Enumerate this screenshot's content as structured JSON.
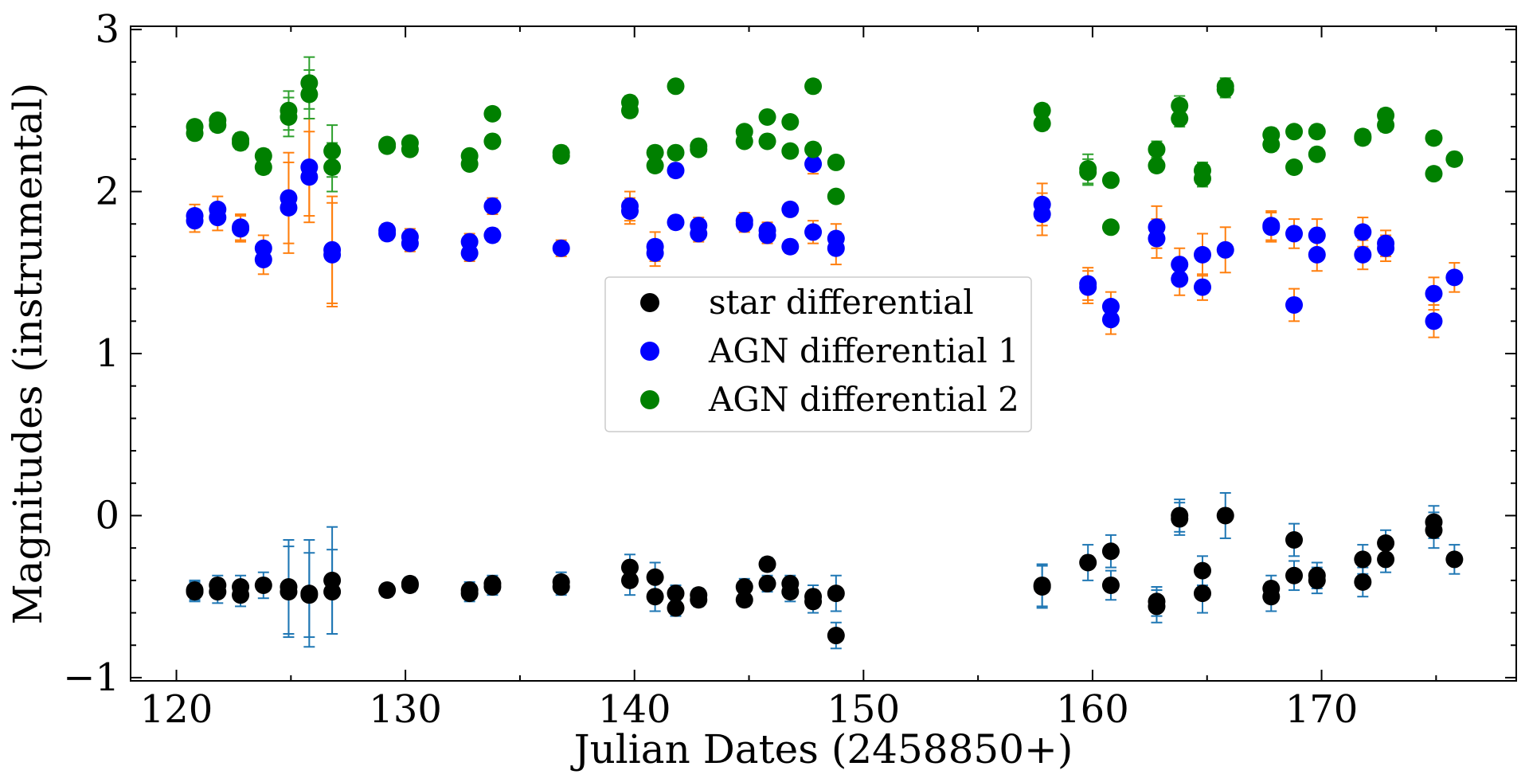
{
  "chart_data": {
    "type": "scatter",
    "title": "",
    "xlabel": "Julian Dates (2458850+)",
    "ylabel": "Magnitudes (instrumental)",
    "xlim": [
      118,
      178.5
    ],
    "ylim": [
      -1.02,
      3.02
    ],
    "xticks": [
      120,
      130,
      140,
      150,
      160,
      170
    ],
    "yticks": [
      -1,
      0,
      1,
      2,
      3
    ],
    "ytick_labels": [
      "−1",
      "0",
      "1",
      "2",
      "3"
    ],
    "grid": false,
    "legend_position": "center",
    "series": [
      {
        "name": "star differential",
        "color": "#000000",
        "errcolor": "#1f77b4",
        "points": [
          [
            120.8,
            -0.46,
            0.06
          ],
          [
            120.8,
            -0.47,
            0.06
          ],
          [
            121.8,
            -0.43,
            0.06
          ],
          [
            121.8,
            -0.47,
            0.07
          ],
          [
            122.8,
            -0.44,
            0.07
          ],
          [
            122.8,
            -0.49,
            0.07
          ],
          [
            123.8,
            -0.43,
            0.08
          ],
          [
            124.9,
            -0.44,
            0.29
          ],
          [
            124.9,
            -0.47,
            0.28
          ],
          [
            125.8,
            -0.48,
            0.33
          ],
          [
            125.8,
            -0.49,
            0.26
          ],
          [
            126.8,
            -0.4,
            0.33
          ],
          [
            126.8,
            -0.47,
            0.26
          ],
          [
            129.2,
            -0.46,
            0.04
          ],
          [
            130.2,
            -0.42,
            0.04
          ],
          [
            130.2,
            -0.43,
            0.04
          ],
          [
            132.8,
            -0.46,
            0.05
          ],
          [
            132.8,
            -0.48,
            0.05
          ],
          [
            133.8,
            -0.42,
            0.05
          ],
          [
            133.8,
            -0.44,
            0.05
          ],
          [
            136.8,
            -0.41,
            0.06
          ],
          [
            136.8,
            -0.44,
            0.05
          ],
          [
            139.8,
            -0.32,
            0.08
          ],
          [
            139.8,
            -0.4,
            0.09
          ],
          [
            140.9,
            -0.38,
            0.09
          ],
          [
            140.9,
            -0.5,
            0.09
          ],
          [
            141.8,
            -0.48,
            0.05
          ],
          [
            141.8,
            -0.57,
            0.05
          ],
          [
            142.8,
            -0.49,
            0.04
          ],
          [
            142.8,
            -0.52,
            0.04
          ],
          [
            144.8,
            -0.44,
            0.05
          ],
          [
            144.8,
            -0.52,
            0.04
          ],
          [
            145.8,
            -0.3,
            0.04
          ],
          [
            145.8,
            -0.42,
            0.05
          ],
          [
            146.8,
            -0.42,
            0.05
          ],
          [
            146.8,
            -0.47,
            0.06
          ],
          [
            147.8,
            -0.5,
            0.07
          ],
          [
            147.8,
            -0.53,
            0.07
          ],
          [
            148.8,
            -0.48,
            0.11
          ],
          [
            148.8,
            -0.74,
            0.08
          ],
          [
            157.8,
            -0.43,
            0.13
          ],
          [
            157.8,
            -0.44,
            0.13
          ],
          [
            159.8,
            -0.29,
            0.11
          ],
          [
            160.8,
            -0.22,
            0.1
          ],
          [
            160.8,
            -0.43,
            0.09
          ],
          [
            162.8,
            -0.53,
            0.09
          ],
          [
            162.8,
            -0.56,
            0.1
          ],
          [
            163.8,
            0.0,
            0.1
          ],
          [
            163.8,
            -0.02,
            0.1
          ],
          [
            164.8,
            -0.34,
            0.09
          ],
          [
            164.8,
            -0.48,
            0.12
          ],
          [
            165.8,
            0.0,
            0.14
          ],
          [
            167.8,
            -0.45,
            0.08
          ],
          [
            167.8,
            -0.5,
            0.09
          ],
          [
            168.8,
            -0.15,
            0.1
          ],
          [
            168.8,
            -0.37,
            0.09
          ],
          [
            169.8,
            -0.37,
            0.08
          ],
          [
            169.8,
            -0.4,
            0.08
          ],
          [
            171.8,
            -0.27,
            0.09
          ],
          [
            171.8,
            -0.41,
            0.09
          ],
          [
            172.8,
            -0.17,
            0.08
          ],
          [
            172.8,
            -0.27,
            0.08
          ],
          [
            174.9,
            -0.04,
            0.1
          ],
          [
            174.9,
            -0.09,
            0.11
          ],
          [
            175.8,
            -0.27,
            0.09
          ]
        ]
      },
      {
        "name": "AGN differential 1",
        "color": "#0000ff",
        "errcolor": "#ff7f0e",
        "points": [
          [
            120.8,
            1.85,
            0.07
          ],
          [
            120.8,
            1.82,
            0.07
          ],
          [
            121.8,
            1.89,
            0.08
          ],
          [
            121.8,
            1.84,
            0.08
          ],
          [
            122.8,
            1.78,
            0.08
          ],
          [
            122.8,
            1.77,
            0.08
          ],
          [
            123.8,
            1.65,
            0.08
          ],
          [
            123.8,
            1.58,
            0.09
          ],
          [
            124.9,
            1.96,
            0.28
          ],
          [
            124.9,
            1.9,
            0.28
          ],
          [
            125.8,
            2.15,
            0.3
          ],
          [
            125.8,
            2.09,
            0.28
          ],
          [
            126.8,
            1.64,
            0.33
          ],
          [
            126.8,
            1.61,
            0.32
          ],
          [
            129.2,
            1.76,
            0.04
          ],
          [
            129.2,
            1.74,
            0.04
          ],
          [
            130.2,
            1.72,
            0.05
          ],
          [
            130.2,
            1.68,
            0.05
          ],
          [
            132.8,
            1.69,
            0.05
          ],
          [
            132.8,
            1.62,
            0.05
          ],
          [
            133.8,
            1.91,
            0.05
          ],
          [
            133.8,
            1.73,
            0.04
          ],
          [
            136.8,
            1.65,
            0.05
          ],
          [
            139.8,
            1.91,
            0.09
          ],
          [
            139.8,
            1.88,
            0.08
          ],
          [
            140.9,
            1.66,
            0.09
          ],
          [
            140.9,
            1.62,
            0.08
          ],
          [
            141.8,
            2.13,
            0.04
          ],
          [
            141.8,
            1.81,
            0.04
          ],
          [
            142.8,
            1.79,
            0.05
          ],
          [
            142.8,
            1.74,
            0.05
          ],
          [
            144.8,
            1.82,
            0.05
          ],
          [
            144.8,
            1.8,
            0.05
          ],
          [
            145.8,
            1.76,
            0.05
          ],
          [
            145.8,
            1.73,
            0.05
          ],
          [
            146.8,
            1.89,
            0.04
          ],
          [
            146.8,
            1.66,
            0.04
          ],
          [
            147.8,
            2.17,
            0.06
          ],
          [
            147.8,
            1.75,
            0.07
          ],
          [
            148.8,
            1.71,
            0.09
          ],
          [
            148.8,
            1.65,
            0.1
          ],
          [
            157.8,
            1.92,
            0.13
          ],
          [
            157.8,
            1.86,
            0.13
          ],
          [
            159.8,
            1.43,
            0.1
          ],
          [
            159.8,
            1.41,
            0.1
          ],
          [
            160.8,
            1.29,
            0.09
          ],
          [
            160.8,
            1.21,
            0.09
          ],
          [
            162.8,
            1.78,
            0.13
          ],
          [
            162.8,
            1.71,
            0.12
          ],
          [
            163.8,
            1.55,
            0.1
          ],
          [
            163.8,
            1.46,
            0.1
          ],
          [
            164.8,
            1.61,
            0.13
          ],
          [
            164.8,
            1.41,
            0.08
          ],
          [
            165.8,
            1.64,
            0.14
          ],
          [
            167.8,
            1.79,
            0.09
          ],
          [
            167.8,
            1.78,
            0.09
          ],
          [
            168.8,
            1.74,
            0.09
          ],
          [
            168.8,
            1.3,
            0.1
          ],
          [
            169.8,
            1.73,
            0.1
          ],
          [
            169.8,
            1.61,
            0.1
          ],
          [
            171.8,
            1.75,
            0.09
          ],
          [
            171.8,
            1.61,
            0.09
          ],
          [
            172.8,
            1.68,
            0.08
          ],
          [
            172.8,
            1.65,
            0.08
          ],
          [
            174.9,
            1.37,
            0.1
          ],
          [
            174.9,
            1.2,
            0.1
          ],
          [
            175.8,
            1.47,
            0.09
          ]
        ]
      },
      {
        "name": "AGN differential 2",
        "color": "#008000",
        "errcolor": "#2ca02c",
        "points": [
          [
            120.8,
            2.4,
            0.04
          ],
          [
            120.8,
            2.36,
            0.04
          ],
          [
            121.8,
            2.44,
            0.04
          ],
          [
            121.8,
            2.41,
            0.04
          ],
          [
            122.8,
            2.32,
            0.04
          ],
          [
            122.8,
            2.3,
            0.04
          ],
          [
            123.8,
            2.22,
            0.04
          ],
          [
            123.8,
            2.15,
            0.04
          ],
          [
            124.9,
            2.5,
            0.12
          ],
          [
            124.9,
            2.46,
            0.12
          ],
          [
            125.8,
            2.67,
            0.16
          ],
          [
            125.8,
            2.6,
            0.15
          ],
          [
            126.8,
            2.25,
            0.16
          ],
          [
            126.8,
            2.15,
            0.15
          ],
          [
            129.2,
            2.29,
            0.03
          ],
          [
            129.2,
            2.28,
            0.03
          ],
          [
            130.2,
            2.3,
            0.03
          ],
          [
            130.2,
            2.26,
            0.03
          ],
          [
            132.8,
            2.22,
            0.03
          ],
          [
            132.8,
            2.17,
            0.03
          ],
          [
            133.8,
            2.48,
            0.03
          ],
          [
            133.8,
            2.31,
            0.03
          ],
          [
            136.8,
            2.24,
            0.04
          ],
          [
            136.8,
            2.22,
            0.04
          ],
          [
            139.8,
            2.55,
            0.04
          ],
          [
            139.8,
            2.5,
            0.04
          ],
          [
            140.9,
            2.24,
            0.04
          ],
          [
            140.9,
            2.16,
            0.04
          ],
          [
            141.8,
            2.65,
            0.03
          ],
          [
            141.8,
            2.24,
            0.03
          ],
          [
            142.8,
            2.28,
            0.03
          ],
          [
            142.8,
            2.26,
            0.03
          ],
          [
            144.8,
            2.37,
            0.03
          ],
          [
            144.8,
            2.31,
            0.03
          ],
          [
            145.8,
            2.46,
            0.03
          ],
          [
            145.8,
            2.31,
            0.03
          ],
          [
            146.8,
            2.43,
            0.03
          ],
          [
            146.8,
            2.25,
            0.03
          ],
          [
            147.8,
            2.65,
            0.04
          ],
          [
            147.8,
            2.26,
            0.04
          ],
          [
            148.8,
            2.18,
            0.03
          ],
          [
            148.8,
            1.97,
            0.03
          ],
          [
            157.8,
            2.5,
            0.04
          ],
          [
            157.8,
            2.42,
            0.04
          ],
          [
            159.8,
            2.14,
            0.09
          ],
          [
            159.8,
            2.12,
            0.08
          ],
          [
            160.8,
            2.07,
            0.03
          ],
          [
            160.8,
            1.78,
            0.03
          ],
          [
            162.8,
            2.26,
            0.05
          ],
          [
            162.8,
            2.16,
            0.04
          ],
          [
            163.8,
            2.53,
            0.06
          ],
          [
            163.8,
            2.45,
            0.05
          ],
          [
            164.8,
            2.13,
            0.05
          ],
          [
            164.8,
            2.08,
            0.05
          ],
          [
            165.8,
            2.65,
            0.05
          ],
          [
            165.8,
            2.63,
            0.05
          ],
          [
            167.8,
            2.35,
            0.04
          ],
          [
            167.8,
            2.29,
            0.04
          ],
          [
            168.8,
            2.37,
            0.03
          ],
          [
            168.8,
            2.15,
            0.03
          ],
          [
            169.8,
            2.37,
            0.04
          ],
          [
            169.8,
            2.23,
            0.04
          ],
          [
            171.8,
            2.34,
            0.04
          ],
          [
            171.8,
            2.33,
            0.04
          ],
          [
            172.8,
            2.47,
            0.04
          ],
          [
            172.8,
            2.41,
            0.04
          ],
          [
            174.9,
            2.33,
            0.04
          ],
          [
            174.9,
            2.11,
            0.04
          ],
          [
            175.8,
            2.2,
            0.04
          ]
        ]
      }
    ]
  }
}
